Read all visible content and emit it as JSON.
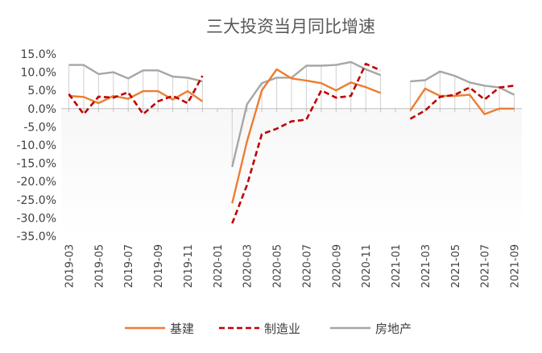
{
  "chart_data": {
    "type": "line",
    "title": "三大投资当月同比增速",
    "xlabel": "",
    "ylabel": "",
    "ylim": [
      -35,
      15
    ],
    "y_step": 5,
    "y_tick_format": "percent_1dp",
    "legend_position": "bottom",
    "grid": false,
    "x": [
      "2019-03",
      "2019-04",
      "2019-05",
      "2019-06",
      "2019-07",
      "2019-08",
      "2019-09",
      "2019-10",
      "2019-11",
      "2019-12",
      "2020-01",
      "2020-02",
      "2020-03",
      "2020-04",
      "2020-05",
      "2020-06",
      "2020-07",
      "2020-08",
      "2020-09",
      "2020-10",
      "2020-11",
      "2020-12",
      "2021-01",
      "2021-02",
      "2021-03",
      "2021-04",
      "2021-05",
      "2021-06",
      "2021-07",
      "2021-08",
      "2021-09"
    ],
    "x_tick_labels": [
      "2019-03",
      "2019-05",
      "2019-07",
      "2019-09",
      "2019-11",
      "2020-01",
      "2020-03",
      "2020-05",
      "2020-07",
      "2020-09",
      "2020-11",
      "2021-01",
      "2021-03",
      "2021-05",
      "2021-07",
      "2021-09"
    ],
    "series": [
      {
        "name": "基建",
        "color": "#ED7D31",
        "dash": "solid",
        "values": [
          3.5,
          3.2,
          1.5,
          3.5,
          2.7,
          4.8,
          4.8,
          2.5,
          4.8,
          2.0,
          null,
          -26.0,
          -9.0,
          5.0,
          10.8,
          8.3,
          7.7,
          7.0,
          5.0,
          7.2,
          5.9,
          4.3,
          null,
          -0.5,
          5.5,
          3.5,
          3.5,
          3.8,
          -1.5,
          0.0,
          0.0
        ]
      },
      {
        "name": "制造业",
        "color": "#C00000",
        "dash": "dashed",
        "values": [
          4.0,
          -1.5,
          3.3,
          3.0,
          4.5,
          -1.5,
          2.0,
          3.5,
          1.5,
          9.0,
          null,
          -31.5,
          -21.0,
          -7.0,
          -5.5,
          -3.5,
          -3.0,
          5.0,
          3.0,
          3.5,
          12.3,
          10.5,
          null,
          -2.8,
          -0.5,
          3.2,
          3.8,
          5.8,
          2.5,
          5.8,
          6.3
        ]
      },
      {
        "name": "房地产",
        "color": "#A6A6A6",
        "dash": "solid",
        "values": [
          12.0,
          12.0,
          9.5,
          10.0,
          8.3,
          10.5,
          10.5,
          8.8,
          8.5,
          7.5,
          null,
          -16.0,
          1.2,
          7.0,
          8.5,
          8.5,
          11.8,
          11.8,
          12.0,
          12.8,
          10.8,
          9.2,
          null,
          7.5,
          7.8,
          10.2,
          9.0,
          7.2,
          6.3,
          5.8,
          3.8
        ]
      }
    ]
  }
}
